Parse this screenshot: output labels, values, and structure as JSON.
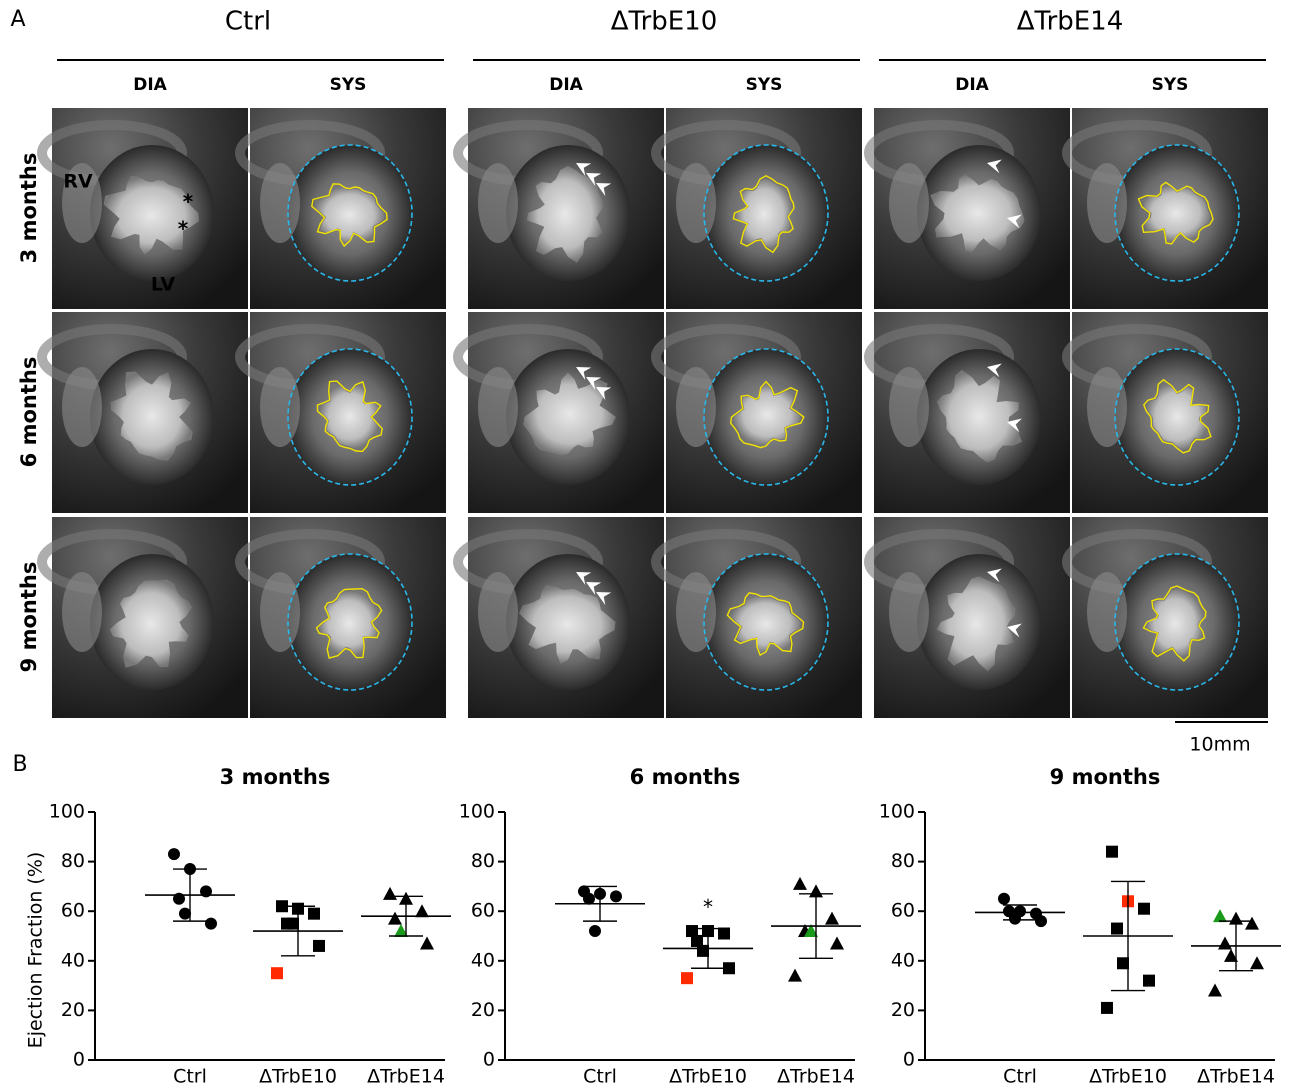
{
  "panel_a": {
    "label": "A",
    "groups": [
      "Ctrl",
      "ΔTrbE10",
      "ΔTrbE14"
    ],
    "phases": [
      "DIA",
      "SYS"
    ],
    "rows": [
      "3 months",
      "6 months",
      "9 months"
    ],
    "annotations": {
      "rv": "RV",
      "lv": "LV",
      "asterisk": "*"
    },
    "scale_bar": "10mm"
  },
  "panel_b": {
    "label": "B"
  },
  "chart_data": [
    {
      "type": "scatter",
      "title": "3 months",
      "y_label": "Ejection Fraction (%)",
      "categories": [
        "Ctrl",
        "ΔTrbE10",
        "ΔTrbE14"
      ],
      "markers": [
        "circle",
        "square",
        "triangle"
      ],
      "points": [
        [
          83,
          77,
          68,
          65,
          59,
          55
        ],
        [
          62,
          61,
          59,
          55,
          55,
          46,
          35
        ],
        [
          67,
          65,
          60,
          57,
          52,
          47
        ]
      ],
      "point_colors": [
        [
          "#000",
          "#000",
          "#000",
          "#000",
          "#000",
          "#000"
        ],
        [
          "#000",
          "#000",
          "#000",
          "#000",
          "#000",
          "#000",
          "#ff2a00"
        ],
        [
          "#000",
          "#000",
          "#000",
          "#000",
          "#1a9a1a",
          "#000"
        ]
      ],
      "means": [
        66.5,
        52,
        58
      ],
      "sd": [
        10.5,
        10,
        8
      ],
      "ylim": [
        0,
        100
      ],
      "yticks": [
        0,
        20,
        40,
        60,
        80,
        100
      ]
    },
    {
      "type": "scatter",
      "title": "6 months",
      "categories": [
        "Ctrl",
        "ΔTrbE10",
        "ΔTrbE14"
      ],
      "markers": [
        "circle",
        "square",
        "triangle"
      ],
      "points": [
        [
          68,
          67,
          66,
          65,
          52
        ],
        [
          52,
          52,
          51,
          48,
          44,
          37,
          33
        ],
        [
          71,
          68,
          57,
          52,
          52,
          47,
          34
        ]
      ],
      "point_colors": [
        [
          "#000",
          "#000",
          "#000",
          "#000",
          "#000"
        ],
        [
          "#000",
          "#000",
          "#000",
          "#000",
          "#000",
          "#000",
          "#ff2a00"
        ],
        [
          "#000",
          "#000",
          "#000",
          "#000",
          "#1a9a1a",
          "#000",
          "#000"
        ]
      ],
      "means": [
        63,
        45,
        54
      ],
      "sd": [
        7,
        8,
        13
      ],
      "annotation": {
        "text": "*",
        "category": "ΔTrbE10"
      },
      "ylim": [
        0,
        100
      ],
      "yticks": [
        0,
        20,
        40,
        60,
        80,
        100
      ]
    },
    {
      "type": "scatter",
      "title": "9 months",
      "categories": [
        "Ctrl",
        "ΔTrbE10",
        "ΔTrbE14"
      ],
      "markers": [
        "circle",
        "square",
        "triangle"
      ],
      "points": [
        [
          65,
          60,
          59,
          60,
          57,
          56
        ],
        [
          84,
          64,
          61,
          53,
          39,
          32,
          21
        ],
        [
          58,
          57,
          55,
          47,
          42,
          39,
          28
        ]
      ],
      "point_colors": [
        [
          "#000",
          "#000",
          "#000",
          "#000",
          "#000",
          "#000"
        ],
        [
          "#000",
          "#ff2a00",
          "#000",
          "#000",
          "#000",
          "#000",
          "#000"
        ],
        [
          "#1a9a1a",
          "#000",
          "#000",
          "#000",
          "#000",
          "#000",
          "#000"
        ]
      ],
      "means": [
        59.5,
        50,
        46
      ],
      "sd": [
        3,
        22,
        10
      ],
      "ylim": [
        0,
        100
      ],
      "yticks": [
        0,
        20,
        40,
        60,
        80,
        100
      ]
    }
  ]
}
